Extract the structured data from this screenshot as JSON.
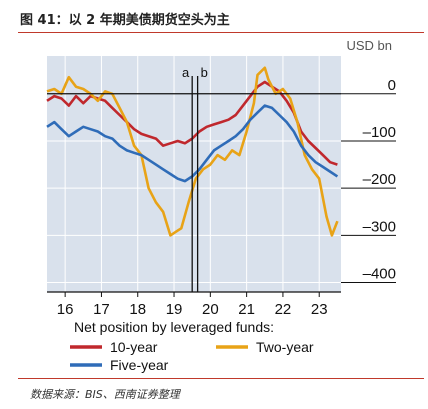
{
  "figure": {
    "title": "图 41：以 2 年期美债期货空头为主",
    "source": "数据来源：BIS、西南证券整理"
  },
  "chart_data": {
    "type": "line",
    "unit_label": "USD bn",
    "legend_title": "Net position by leveraged funds:",
    "legend_position": "bottom",
    "grid": true,
    "xlim": [
      15.5,
      23.6
    ],
    "ylim": [
      -420,
      80
    ],
    "x_ticks": [
      16,
      17,
      18,
      19,
      20,
      21,
      22,
      23
    ],
    "y_ticks": [
      0,
      -100,
      -200,
      -300,
      -400
    ],
    "y_tick_labels": [
      "0",
      "–100",
      "–200",
      "–300",
      "–400"
    ],
    "markers": [
      {
        "label": "a",
        "x": 19.5
      },
      {
        "label": "b",
        "x": 19.65
      }
    ],
    "series": [
      {
        "name": "10-year",
        "color": "#c0282d",
        "points": [
          [
            15.5,
            -15
          ],
          [
            15.7,
            -5
          ],
          [
            15.9,
            -10
          ],
          [
            16.1,
            -25
          ],
          [
            16.3,
            -5
          ],
          [
            16.5,
            -20
          ],
          [
            16.7,
            -5
          ],
          [
            16.9,
            -10
          ],
          [
            17.1,
            -15
          ],
          [
            17.3,
            -30
          ],
          [
            17.5,
            -45
          ],
          [
            17.7,
            -60
          ],
          [
            17.9,
            -75
          ],
          [
            18.1,
            -85
          ],
          [
            18.3,
            -90
          ],
          [
            18.5,
            -95
          ],
          [
            18.7,
            -110
          ],
          [
            18.9,
            -105
          ],
          [
            19.1,
            -100
          ],
          [
            19.3,
            -105
          ],
          [
            19.5,
            -95
          ],
          [
            19.7,
            -80
          ],
          [
            19.9,
            -70
          ],
          [
            20.1,
            -65
          ],
          [
            20.3,
            -60
          ],
          [
            20.5,
            -55
          ],
          [
            20.7,
            -45
          ],
          [
            20.9,
            -25
          ],
          [
            21.1,
            -5
          ],
          [
            21.3,
            15
          ],
          [
            21.5,
            25
          ],
          [
            21.7,
            15
          ],
          [
            21.9,
            5
          ],
          [
            22.1,
            -15
          ],
          [
            22.3,
            -40
          ],
          [
            22.5,
            -80
          ],
          [
            22.7,
            -100
          ],
          [
            22.9,
            -115
          ],
          [
            23.1,
            -130
          ],
          [
            23.3,
            -145
          ],
          [
            23.5,
            -150
          ]
        ]
      },
      {
        "name": "Two-year",
        "color": "#e8a317",
        "points": [
          [
            15.5,
            5
          ],
          [
            15.7,
            10
          ],
          [
            15.9,
            0
          ],
          [
            16.1,
            35
          ],
          [
            16.3,
            15
          ],
          [
            16.5,
            10
          ],
          [
            16.7,
            0
          ],
          [
            16.9,
            -15
          ],
          [
            17.1,
            5
          ],
          [
            17.3,
            0
          ],
          [
            17.5,
            -30
          ],
          [
            17.7,
            -60
          ],
          [
            17.9,
            -110
          ],
          [
            18.1,
            -130
          ],
          [
            18.3,
            -200
          ],
          [
            18.5,
            -230
          ],
          [
            18.7,
            -250
          ],
          [
            18.9,
            -300
          ],
          [
            19.1,
            -290
          ],
          [
            19.2,
            -285
          ],
          [
            19.4,
            -230
          ],
          [
            19.6,
            -180
          ],
          [
            19.8,
            -160
          ],
          [
            20.0,
            -150
          ],
          [
            20.2,
            -130
          ],
          [
            20.4,
            -140
          ],
          [
            20.6,
            -120
          ],
          [
            20.8,
            -130
          ],
          [
            21.0,
            -80
          ],
          [
            21.2,
            -20
          ],
          [
            21.3,
            40
          ],
          [
            21.5,
            55
          ],
          [
            21.6,
            30
          ],
          [
            21.8,
            0
          ],
          [
            22.0,
            10
          ],
          [
            22.2,
            -10
          ],
          [
            22.4,
            -60
          ],
          [
            22.6,
            -130
          ],
          [
            22.8,
            -160
          ],
          [
            23.0,
            -180
          ],
          [
            23.2,
            -260
          ],
          [
            23.35,
            -300
          ],
          [
            23.5,
            -270
          ]
        ]
      },
      {
        "name": "Five-year",
        "color": "#2f6cb8",
        "points": [
          [
            15.5,
            -70
          ],
          [
            15.7,
            -60
          ],
          [
            15.9,
            -75
          ],
          [
            16.1,
            -90
          ],
          [
            16.3,
            -80
          ],
          [
            16.5,
            -70
          ],
          [
            16.7,
            -75
          ],
          [
            16.9,
            -80
          ],
          [
            17.1,
            -90
          ],
          [
            17.3,
            -95
          ],
          [
            17.5,
            -110
          ],
          [
            17.7,
            -120
          ],
          [
            17.9,
            -125
          ],
          [
            18.1,
            -130
          ],
          [
            18.3,
            -140
          ],
          [
            18.5,
            -150
          ],
          [
            18.7,
            -160
          ],
          [
            18.9,
            -170
          ],
          [
            19.1,
            -180
          ],
          [
            19.3,
            -185
          ],
          [
            19.5,
            -175
          ],
          [
            19.7,
            -160
          ],
          [
            19.9,
            -140
          ],
          [
            20.1,
            -120
          ],
          [
            20.3,
            -110
          ],
          [
            20.5,
            -100
          ],
          [
            20.7,
            -90
          ],
          [
            20.9,
            -75
          ],
          [
            21.1,
            -55
          ],
          [
            21.3,
            -40
          ],
          [
            21.5,
            -25
          ],
          [
            21.7,
            -30
          ],
          [
            21.9,
            -45
          ],
          [
            22.1,
            -60
          ],
          [
            22.3,
            -80
          ],
          [
            22.5,
            -110
          ],
          [
            22.7,
            -130
          ],
          [
            22.9,
            -145
          ],
          [
            23.1,
            -155
          ],
          [
            23.3,
            -165
          ],
          [
            23.5,
            -175
          ]
        ]
      }
    ]
  }
}
